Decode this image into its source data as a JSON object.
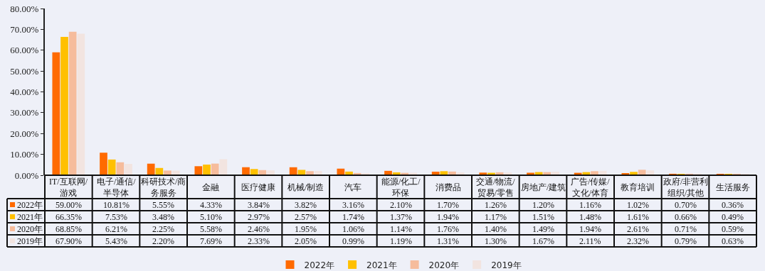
{
  "chart_data": {
    "type": "bar",
    "categories": [
      "IT/互联网/游戏",
      "电子/通信/半导体",
      "科研技术/商务服务",
      "金融",
      "医疗健康",
      "机械/制造",
      "汽车",
      "能源/化工/环保",
      "消费品",
      "交通/物流/贸易/零售",
      "房地产/建筑",
      "广告/传媒/文化/体育",
      "教育培训",
      "政府/非营利组织/其他",
      "生活服务"
    ],
    "series": [
      {
        "name": "2022年",
        "color": "#ff6a00",
        "values": [
          59.0,
          10.81,
          5.55,
          4.33,
          3.84,
          3.82,
          3.16,
          2.1,
          1.7,
          1.26,
          1.2,
          1.16,
          1.02,
          0.7,
          0.36
        ],
        "value_labels": [
          "59.00%",
          "10.81%",
          "5.55%",
          "4.33%",
          "3.84%",
          "3.82%",
          "3.16%",
          "2.10%",
          "1.70%",
          "1.26%",
          "1.20%",
          "1.16%",
          "1.02%",
          "0.70%",
          "0.36%"
        ]
      },
      {
        "name": "2021年",
        "color": "#ffc000",
        "values": [
          66.35,
          7.53,
          3.48,
          5.1,
          2.97,
          2.57,
          1.74,
          1.37,
          1.94,
          1.17,
          1.51,
          1.48,
          1.61,
          0.66,
          0.49
        ],
        "value_labels": [
          "66.35%",
          "7.53%",
          "3.48%",
          "5.10%",
          "2.97%",
          "2.57%",
          "1.74%",
          "1.37%",
          "1.94%",
          "1.17%",
          "1.51%",
          "1.48%",
          "1.61%",
          "0.66%",
          "0.49%"
        ]
      },
      {
        "name": "2020年",
        "color": "#f6bc9c",
        "values": [
          68.85,
          6.21,
          2.25,
          5.58,
          2.46,
          1.95,
          1.06,
          1.14,
          1.76,
          1.4,
          1.49,
          1.94,
          2.61,
          0.71,
          0.59
        ],
        "value_labels": [
          "68.85%",
          "6.21%",
          "2.25%",
          "5.58%",
          "2.46%",
          "1.95%",
          "1.06%",
          "1.14%",
          "1.76%",
          "1.40%",
          "1.49%",
          "1.94%",
          "2.61%",
          "0.71%",
          "0.59%"
        ]
      },
      {
        "name": "2019年",
        "color": "#f2e4e0",
        "values": [
          67.9,
          5.43,
          2.2,
          7.69,
          2.33,
          2.05,
          0.99,
          1.19,
          1.31,
          1.3,
          1.67,
          2.11,
          2.32,
          0.79,
          0.63
        ],
        "value_labels": [
          "67.90%",
          "5.43%",
          "2.20%",
          "7.69%",
          "2.33%",
          "2.05%",
          "0.99%",
          "1.19%",
          "1.31%",
          "1.30%",
          "1.67%",
          "2.11%",
          "2.32%",
          "0.79%",
          "0.63%"
        ]
      }
    ],
    "ylim": [
      0,
      80
    ],
    "yticks": [
      {
        "value": 0,
        "label": "0.00%"
      },
      {
        "value": 10,
        "label": "10.00%"
      },
      {
        "value": 20,
        "label": "20.00%"
      },
      {
        "value": 30,
        "label": "30.00%"
      },
      {
        "value": 40,
        "label": "40.00%"
      },
      {
        "value": 50,
        "label": "50.00%"
      },
      {
        "value": 60,
        "label": "60.00%"
      },
      {
        "value": 70,
        "label": "70.00%"
      },
      {
        "value": 80,
        "label": "80.00%"
      }
    ],
    "grid": false,
    "legend": "bottom"
  }
}
